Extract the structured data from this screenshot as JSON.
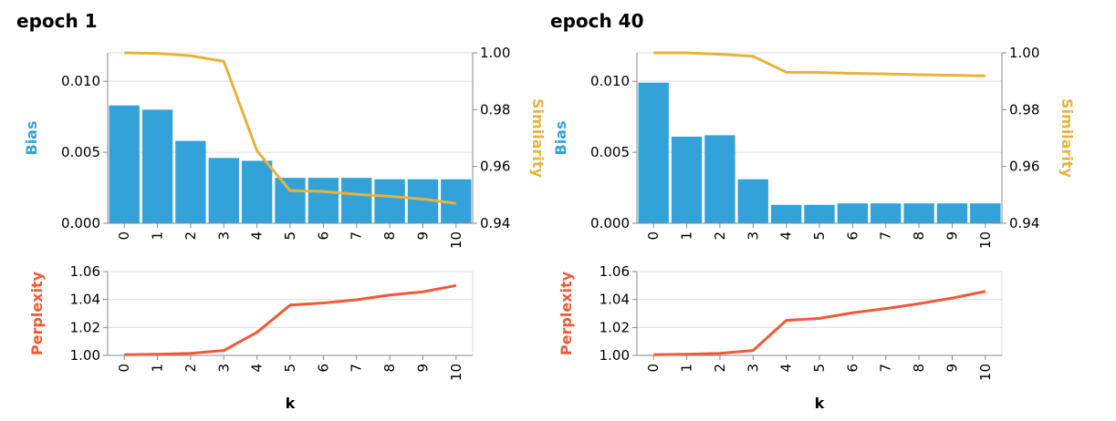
{
  "colors": {
    "bias": "#33a2d8",
    "similarity": "#e8b23a",
    "perplexity": "#ef5a37",
    "axis": "#888888",
    "grid": "#dddddd"
  },
  "x_title": "k",
  "chart_data": [
    {
      "title": "epoch 1",
      "type": "bar",
      "categories": [
        "0",
        "1",
        "2",
        "3",
        "4",
        "5",
        "6",
        "7",
        "8",
        "9",
        "10"
      ],
      "top": {
        "ylabel_left": "Bias",
        "ylabel_right": "Similarity",
        "bias_ylim": [
          0,
          0.012
        ],
        "bias_ticks": [
          "0.000",
          "0.005",
          "0.010"
        ],
        "bias_tick_values": [
          0,
          0.005,
          0.01
        ],
        "similarity_ylim": [
          0.94,
          1.0
        ],
        "similarity_ticks": [
          "0.94",
          "0.96",
          "0.98",
          "1.00"
        ],
        "similarity_tick_values": [
          0.94,
          0.96,
          0.98,
          1.0
        ],
        "series": [
          {
            "name": "Bias",
            "type": "bar",
            "values": [
              0.0083,
              0.008,
              0.0058,
              0.0046,
              0.0044,
              0.0032,
              0.0032,
              0.0032,
              0.0031,
              0.0031,
              0.0031
            ]
          },
          {
            "name": "Similarity",
            "type": "line",
            "values": [
              1.0,
              0.9998,
              0.999,
              0.997,
              0.9655,
              0.9515,
              0.9512,
              0.9502,
              0.9495,
              0.9485,
              0.947
            ]
          }
        ]
      },
      "bottom": {
        "ylabel": "Perplexity",
        "ylim": [
          1.0,
          1.06
        ],
        "ticks": [
          "1.00",
          "1.02",
          "1.04",
          "1.06"
        ],
        "tick_values": [
          1.0,
          1.02,
          1.04,
          1.06
        ],
        "series": [
          {
            "name": "Perplexity",
            "type": "line",
            "values": [
              1.0005,
              1.0008,
              1.0015,
              1.0035,
              1.0165,
              1.036,
              1.0375,
              1.0398,
              1.0432,
              1.0455,
              1.05
            ]
          }
        ]
      }
    },
    {
      "title": "epoch 40",
      "type": "bar",
      "categories": [
        "0",
        "1",
        "2",
        "3",
        "4",
        "5",
        "6",
        "7",
        "8",
        "9",
        "10"
      ],
      "top": {
        "ylabel_left": "Bias",
        "ylabel_right": "Similarity",
        "bias_ylim": [
          0,
          0.012
        ],
        "bias_ticks": [
          "0.000",
          "0.005",
          "0.010"
        ],
        "bias_tick_values": [
          0,
          0.005,
          0.01
        ],
        "similarity_ylim": [
          0.94,
          1.0
        ],
        "similarity_ticks": [
          "0.94",
          "0.96",
          "0.98",
          "1.00"
        ],
        "similarity_tick_values": [
          0.94,
          0.96,
          0.98,
          1.0
        ],
        "series": [
          {
            "name": "Bias",
            "type": "bar",
            "values": [
              0.0099,
              0.0061,
              0.0062,
              0.0031,
              0.0013,
              0.0013,
              0.0014,
              0.0014,
              0.0014,
              0.0014,
              0.0014
            ]
          },
          {
            "name": "Similarity",
            "type": "line",
            "values": [
              1.0,
              1.0,
              0.9995,
              0.9988,
              0.9932,
              0.9931,
              0.9928,
              0.9926,
              0.9923,
              0.9921,
              0.9919
            ]
          }
        ]
      },
      "bottom": {
        "ylabel": "Perplexity",
        "ylim": [
          1.0,
          1.06
        ],
        "ticks": [
          "1.00",
          "1.02",
          "1.04",
          "1.06"
        ],
        "tick_values": [
          1.0,
          1.02,
          1.04,
          1.06
        ],
        "series": [
          {
            "name": "Perplexity",
            "type": "line",
            "values": [
              1.0005,
              1.0008,
              1.0015,
              1.0035,
              1.025,
              1.0265,
              1.0305,
              1.0335,
              1.037,
              1.041,
              1.0458
            ]
          }
        ]
      }
    }
  ]
}
